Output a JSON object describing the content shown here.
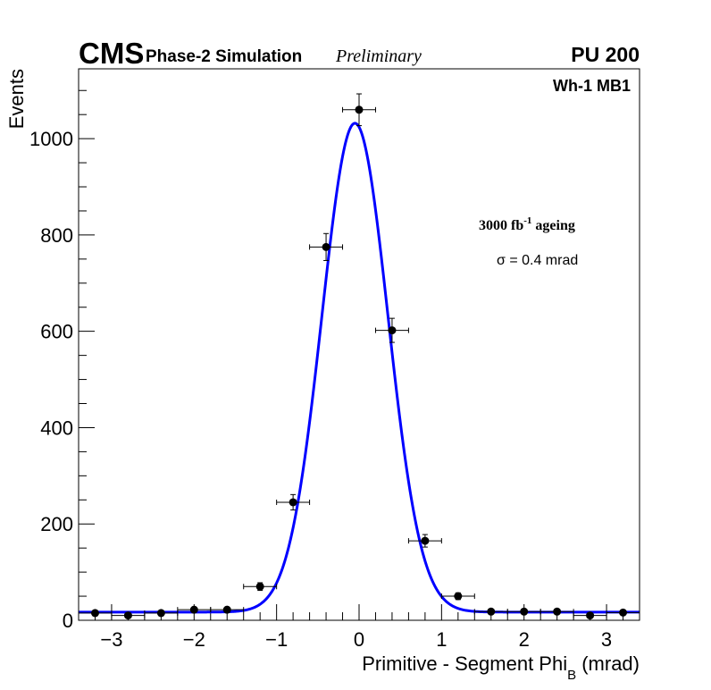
{
  "header": {
    "experiment": "CMS",
    "subtitle": "Phase-2 Simulation",
    "status": "Preliminary",
    "pileup": "PU 200"
  },
  "labels": {
    "region": "Wh-1 MB1",
    "ageing_prefix": "3000 fb",
    "ageing_exp": "-1",
    "ageing_suffix": " ageing",
    "sigma_text": "σ = 0.4 mrad"
  },
  "colors": {
    "fit": "#0000ff",
    "points": "#000000",
    "frame": "#000000"
  },
  "chart_data": {
    "type": "scatter",
    "title": "",
    "xlabel_main": "Primitive - Segment Phi",
    "xlabel_sub": "B",
    "xlabel_unit": " (mrad)",
    "ylabel": "Events",
    "xlim": [
      -3.4,
      3.4
    ],
    "ylim": [
      0,
      1145
    ],
    "x_ticks": [
      -3,
      -2,
      -1,
      0,
      1,
      2,
      3
    ],
    "y_ticks": [
      0,
      200,
      400,
      600,
      800,
      1000
    ],
    "x_tick_labels": [
      "−3",
      "−2",
      "−1",
      "0",
      "1",
      "2",
      "3"
    ],
    "y_tick_labels": [
      "0",
      "200",
      "400",
      "600",
      "800",
      "1000"
    ],
    "bin_half_width": 0.2,
    "series": [
      {
        "name": "data",
        "x": [
          -3.2,
          -2.8,
          -2.4,
          -2.0,
          -1.6,
          -1.2,
          -0.8,
          -0.4,
          0.0,
          0.4,
          0.8,
          1.2,
          1.6,
          2.0,
          2.4,
          2.8,
          3.2
        ],
        "y": [
          15,
          10,
          15,
          22,
          22,
          70,
          245,
          775,
          1060,
          602,
          165,
          50,
          18,
          18,
          18,
          10,
          16
        ],
        "yerr": [
          4,
          3,
          4,
          5,
          5,
          8,
          16,
          28,
          33,
          25,
          13,
          7,
          4,
          4,
          4,
          3,
          4
        ]
      },
      {
        "name": "fit",
        "function": "gaussian+constant",
        "constant": 17,
        "amplitude": 1015,
        "mean": -0.05,
        "sigma": 0.4
      }
    ]
  }
}
